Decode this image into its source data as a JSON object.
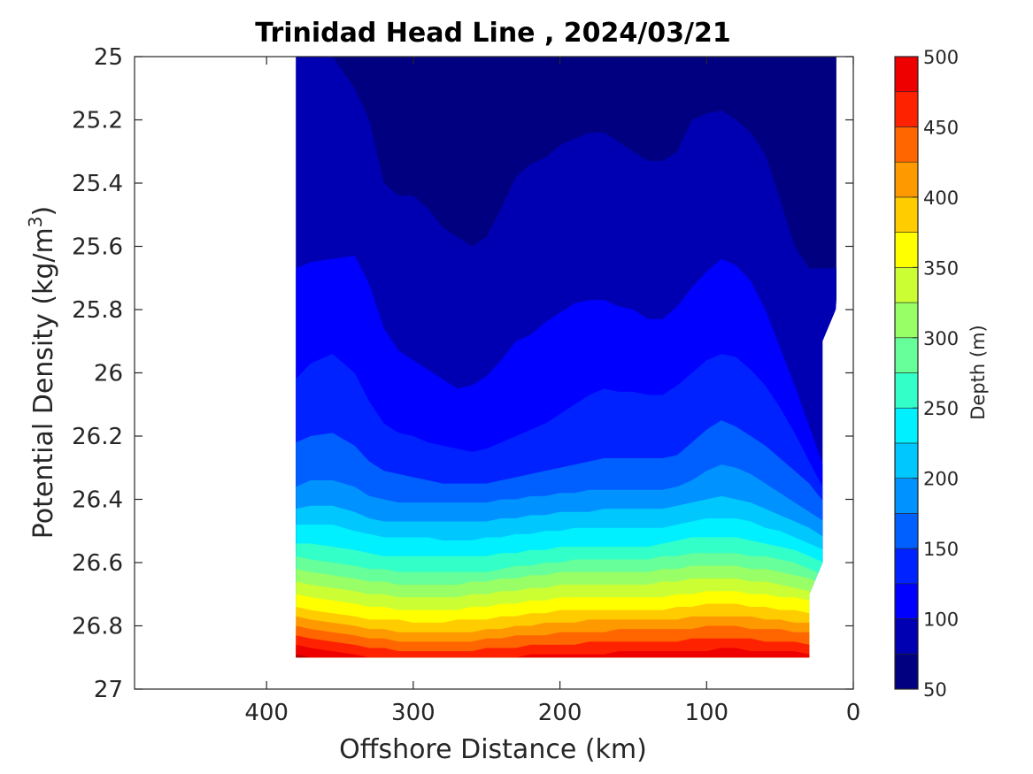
{
  "chart_data": {
    "type": "filled-contour",
    "title": "Trinidad Head Line , 2024/03/21",
    "xlabel": "Offshore Distance (km)",
    "ylabel_prefix": "Potential Density (kg/m",
    "ylabel_sup": "3",
    "ylabel_suffix": ")",
    "colorbar_label": "Depth (m)",
    "xlim": [
      490,
      0
    ],
    "ylim": [
      25,
      27
    ],
    "x_reversed": true,
    "y_reversed": true,
    "xticks": [
      400,
      300,
      200,
      100,
      0
    ],
    "xtick_labels": [
      "400",
      "300",
      "200",
      "100",
      "0"
    ],
    "yticks": [
      25,
      25.2,
      25.4,
      25.6,
      25.8,
      26,
      26.2,
      26.4,
      26.6,
      26.8,
      27
    ],
    "ytick_labels": [
      "25",
      "25.2",
      "25.4",
      "25.6",
      "25.8",
      "26",
      "26.2",
      "26.4",
      "26.6",
      "26.8",
      "27"
    ],
    "colorbar_range": [
      50,
      500
    ],
    "colorbar_ticks": [
      50,
      100,
      150,
      200,
      250,
      300,
      350,
      400,
      450,
      500
    ],
    "colorbar_tick_labels": [
      "50",
      "100",
      "150",
      "200",
      "250",
      "300",
      "350",
      "400",
      "450",
      "500"
    ],
    "contour_levels": [
      50,
      75,
      100,
      125,
      150,
      175,
      200,
      225,
      250,
      275,
      300,
      325,
      350,
      375,
      400,
      425,
      450,
      475,
      500
    ],
    "level_colors": [
      "#000080",
      "#0000b2",
      "#0000ff",
      "#0022ff",
      "#0060ff",
      "#0093ff",
      "#00c8ff",
      "#00f0ff",
      "#33ffc8",
      "#66ff99",
      "#99ff66",
      "#ccff33",
      "#ffff00",
      "#ffcc00",
      "#ff9900",
      "#ff6600",
      "#ff2200",
      "#ee0000",
      "#b00000"
    ],
    "data_extent": {
      "x_range": [
        380,
        10
      ],
      "y_range": [
        25,
        26.9
      ]
    },
    "boundary": [
      [
        380,
        25.0
      ],
      [
        10,
        25.0
      ],
      [
        10,
        25.68
      ],
      [
        12,
        25.8
      ],
      [
        21,
        25.9
      ],
      [
        21,
        26.6
      ],
      [
        30,
        26.7
      ],
      [
        30,
        26.9
      ],
      [
        380,
        26.9
      ]
    ],
    "x": [
      380,
      370,
      355,
      340,
      330,
      320,
      310,
      300,
      290,
      280,
      270,
      260,
      250,
      240,
      230,
      220,
      210,
      200,
      190,
      180,
      170,
      160,
      150,
      140,
      130,
      120,
      110,
      100,
      90,
      80,
      70,
      60,
      50,
      40,
      30,
      20
    ],
    "contours": [
      {
        "level": 75,
        "y": [
          25.0,
          25.0,
          25.0,
          25.1,
          25.2,
          25.4,
          25.44,
          25.44,
          25.48,
          25.54,
          25.57,
          25.6,
          25.57,
          25.48,
          25.38,
          25.34,
          25.32,
          25.28,
          25.26,
          25.24,
          25.24,
          25.27,
          25.3,
          25.33,
          25.33,
          25.3,
          25.2,
          25.18,
          25.17,
          25.2,
          25.24,
          25.31,
          25.45,
          25.6,
          25.67,
          25.67
        ]
      },
      {
        "level": 100,
        "y": [
          25.67,
          25.65,
          25.64,
          25.63,
          25.72,
          25.86,
          25.93,
          25.96,
          25.99,
          26.02,
          26.05,
          26.04,
          26.01,
          25.96,
          25.9,
          25.88,
          25.84,
          25.81,
          25.78,
          25.77,
          25.77,
          25.79,
          25.8,
          25.83,
          25.83,
          25.79,
          25.73,
          25.68,
          25.64,
          25.66,
          25.71,
          25.8,
          25.92,
          26.04,
          26.17,
          26.3
        ]
      },
      {
        "level": 125,
        "y": [
          26.02,
          25.97,
          25.94,
          26.0,
          26.09,
          26.16,
          26.19,
          26.2,
          26.22,
          26.23,
          26.24,
          26.25,
          26.24,
          26.22,
          26.2,
          26.18,
          26.16,
          26.13,
          26.1,
          26.07,
          26.05,
          26.06,
          26.06,
          26.07,
          26.07,
          26.04,
          26.0,
          25.96,
          25.94,
          25.95,
          25.99,
          26.04,
          26.11,
          26.19,
          26.28,
          26.37
        ]
      },
      {
        "level": 150,
        "y": [
          26.22,
          26.2,
          26.19,
          26.23,
          26.28,
          26.31,
          26.32,
          26.33,
          26.34,
          26.35,
          26.35,
          26.35,
          26.35,
          26.34,
          26.33,
          26.32,
          26.31,
          26.3,
          26.29,
          26.28,
          26.27,
          26.27,
          26.27,
          26.27,
          26.27,
          26.26,
          26.22,
          26.18,
          26.15,
          26.17,
          26.2,
          26.23,
          26.27,
          26.31,
          26.35,
          26.41
        ]
      },
      {
        "level": 175,
        "y": [
          26.36,
          26.34,
          26.34,
          26.36,
          26.39,
          26.4,
          26.41,
          26.41,
          26.41,
          26.41,
          26.41,
          26.41,
          26.41,
          26.4,
          26.4,
          26.39,
          26.39,
          26.38,
          26.38,
          26.37,
          26.37,
          26.37,
          26.37,
          26.37,
          26.37,
          26.36,
          26.34,
          26.31,
          26.29,
          26.3,
          26.32,
          26.35,
          26.38,
          26.41,
          26.44,
          26.47
        ]
      },
      {
        "level": 200,
        "y": [
          26.43,
          26.42,
          26.42,
          26.44,
          26.46,
          26.47,
          26.47,
          26.47,
          26.47,
          26.47,
          26.47,
          26.47,
          26.47,
          26.46,
          26.46,
          26.45,
          26.45,
          26.44,
          26.44,
          26.44,
          26.43,
          26.43,
          26.43,
          26.43,
          26.43,
          26.42,
          26.41,
          26.4,
          26.39,
          26.4,
          26.41,
          26.43,
          26.45,
          26.47,
          26.49,
          26.52
        ]
      },
      {
        "level": 225,
        "y": [
          26.48,
          26.48,
          26.48,
          26.5,
          26.51,
          26.52,
          26.52,
          26.52,
          26.52,
          26.53,
          26.53,
          26.53,
          26.52,
          26.52,
          26.51,
          26.51,
          26.5,
          26.5,
          26.49,
          26.49,
          26.49,
          26.49,
          26.49,
          26.49,
          26.49,
          26.48,
          26.47,
          26.46,
          26.46,
          26.46,
          26.47,
          26.49,
          26.5,
          26.52,
          26.54,
          26.56
        ]
      },
      {
        "level": 250,
        "y": [
          26.54,
          26.54,
          26.55,
          26.56,
          26.57,
          26.58,
          26.58,
          26.58,
          26.58,
          26.58,
          26.58,
          26.58,
          26.58,
          26.57,
          26.57,
          26.56,
          26.56,
          26.55,
          26.55,
          26.55,
          26.55,
          26.55,
          26.55,
          26.55,
          26.54,
          26.53,
          26.52,
          26.52,
          26.52,
          26.52,
          26.53,
          26.54,
          26.55,
          26.56,
          26.58,
          26.6
        ]
      },
      {
        "level": 275,
        "y": [
          26.58,
          26.59,
          26.6,
          26.61,
          26.62,
          26.62,
          26.63,
          26.63,
          26.63,
          26.63,
          26.63,
          26.63,
          26.63,
          26.62,
          26.61,
          26.61,
          26.6,
          26.6,
          26.59,
          26.59,
          26.59,
          26.59,
          26.59,
          26.59,
          26.58,
          26.58,
          26.57,
          26.57,
          26.57,
          26.57,
          26.58,
          26.58,
          26.59,
          26.6,
          26.62,
          26.64
        ]
      },
      {
        "level": 300,
        "y": [
          26.62,
          26.63,
          26.64,
          26.65,
          26.66,
          26.66,
          26.67,
          26.67,
          26.67,
          26.67,
          26.67,
          26.66,
          26.66,
          26.65,
          26.65,
          26.64,
          26.64,
          26.63,
          26.63,
          26.63,
          26.63,
          26.63,
          26.63,
          26.63,
          26.62,
          26.62,
          26.61,
          26.61,
          26.61,
          26.61,
          26.62,
          26.62,
          26.63,
          26.64,
          26.65,
          26.67
        ]
      },
      {
        "level": 325,
        "y": [
          26.66,
          26.67,
          26.68,
          26.69,
          26.7,
          26.7,
          26.71,
          26.71,
          26.71,
          26.71,
          26.71,
          26.7,
          26.7,
          26.69,
          26.69,
          26.68,
          26.68,
          26.67,
          26.67,
          26.67,
          26.67,
          26.67,
          26.67,
          26.67,
          26.66,
          26.66,
          26.65,
          26.65,
          26.65,
          26.65,
          26.66,
          26.66,
          26.67,
          26.68,
          26.69,
          26.7
        ]
      },
      {
        "level": 350,
        "y": [
          26.7,
          26.71,
          26.72,
          26.73,
          26.74,
          26.74,
          26.75,
          26.75,
          26.75,
          26.75,
          26.75,
          26.74,
          26.74,
          26.73,
          26.73,
          26.72,
          26.72,
          26.71,
          26.71,
          26.71,
          26.71,
          26.71,
          26.71,
          26.71,
          26.71,
          26.7,
          26.7,
          26.69,
          26.69,
          26.69,
          26.7,
          26.7,
          26.71,
          26.71,
          26.72,
          26.73
        ]
      },
      {
        "level": 375,
        "y": [
          26.74,
          26.75,
          26.76,
          26.77,
          26.78,
          26.78,
          26.78,
          26.79,
          26.79,
          26.79,
          26.78,
          26.78,
          26.78,
          26.77,
          26.77,
          26.76,
          26.76,
          26.75,
          26.75,
          26.75,
          26.75,
          26.75,
          26.75,
          26.75,
          26.75,
          26.74,
          26.74,
          26.73,
          26.73,
          26.73,
          26.74,
          26.74,
          26.75,
          26.75,
          26.76,
          26.77
        ]
      },
      {
        "level": 400,
        "y": [
          26.77,
          26.78,
          26.79,
          26.8,
          26.81,
          26.81,
          26.82,
          26.82,
          26.82,
          26.82,
          26.82,
          26.82,
          26.81,
          26.81,
          26.8,
          26.8,
          26.79,
          26.79,
          26.79,
          26.78,
          26.78,
          26.78,
          26.78,
          26.78,
          26.78,
          26.78,
          26.77,
          26.77,
          26.77,
          26.77,
          26.77,
          26.78,
          26.78,
          26.79,
          26.79,
          26.8
        ]
      },
      {
        "level": 425,
        "y": [
          26.8,
          26.81,
          26.82,
          26.83,
          26.84,
          26.84,
          26.85,
          26.85,
          26.85,
          26.85,
          26.85,
          26.85,
          26.84,
          26.84,
          26.83,
          26.83,
          26.83,
          26.82,
          26.82,
          26.82,
          26.82,
          26.81,
          26.81,
          26.81,
          26.81,
          26.81,
          26.81,
          26.8,
          26.8,
          26.8,
          26.81,
          26.81,
          26.81,
          26.82,
          26.82,
          26.83
        ]
      },
      {
        "level": 450,
        "y": [
          26.83,
          26.84,
          26.85,
          26.86,
          26.87,
          26.87,
          26.88,
          26.88,
          26.88,
          26.88,
          26.88,
          26.88,
          26.87,
          26.87,
          26.87,
          26.86,
          26.86,
          26.86,
          26.86,
          26.85,
          26.85,
          26.85,
          26.85,
          26.85,
          26.85,
          26.85,
          26.84,
          26.84,
          26.84,
          26.84,
          26.84,
          26.85,
          26.85,
          26.85,
          26.86,
          26.86
        ]
      },
      {
        "level": 475,
        "y": [
          26.86,
          26.87,
          26.88,
          26.89,
          26.9,
          26.9,
          26.9,
          26.9,
          26.9,
          26.9,
          26.9,
          26.9,
          26.9,
          26.9,
          26.9,
          26.89,
          26.89,
          26.89,
          26.89,
          26.89,
          26.89,
          26.88,
          26.88,
          26.88,
          26.88,
          26.88,
          26.88,
          26.88,
          26.87,
          26.87,
          26.88,
          26.88,
          26.88,
          26.88,
          26.89,
          26.89
        ]
      },
      {
        "level": 500,
        "y": [
          26.89,
          26.9,
          26.9,
          26.9,
          26.9,
          26.9,
          26.9,
          26.9,
          26.9,
          26.9,
          26.9,
          26.9,
          26.9,
          26.9,
          26.9,
          26.9,
          26.9,
          26.9,
          26.9,
          26.9,
          26.9,
          26.9,
          26.9,
          26.9,
          26.9,
          26.9,
          26.9,
          26.9,
          26.9,
          26.9,
          26.9,
          26.9,
          26.9,
          26.9,
          26.9,
          26.9
        ]
      }
    ],
    "grid": false,
    "colorbar_position": "right"
  }
}
